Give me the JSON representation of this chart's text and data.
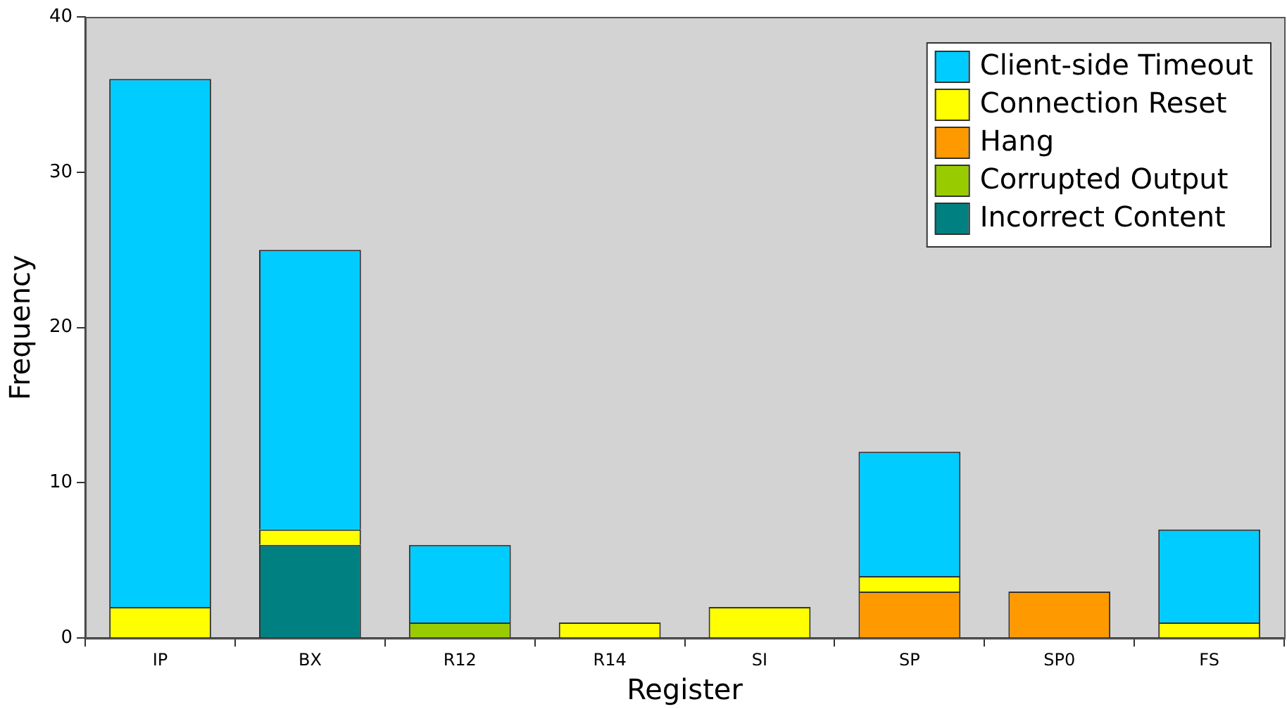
{
  "chart_data": {
    "type": "bar",
    "stacked": true,
    "xlabel": "Register",
    "ylabel": "Frequency",
    "categories": [
      "IP",
      "BX",
      "R12",
      "R14",
      "SI",
      "SP",
      "SP0",
      "FS"
    ],
    "ylim": [
      0,
      40
    ],
    "yticks": [
      0,
      10,
      20,
      30,
      40
    ],
    "legend": "top right",
    "series": [
      {
        "name": "Incorrect Content",
        "color": "#008080",
        "values": [
          0,
          6,
          0,
          0,
          0,
          0,
          0,
          0
        ]
      },
      {
        "name": "Corrupted Output",
        "color": "#99cc00",
        "values": [
          0,
          0,
          1,
          0,
          0,
          0,
          0,
          0
        ]
      },
      {
        "name": "Hang",
        "color": "#ff9900",
        "values": [
          0,
          0,
          0,
          0,
          0,
          3,
          3,
          0
        ]
      },
      {
        "name": "Connection Reset",
        "color": "#ffff00",
        "values": [
          2,
          1,
          0,
          1,
          2,
          1,
          0,
          1
        ]
      },
      {
        "name": "Client-side Timeout",
        "color": "#00ccff",
        "values": [
          34,
          18,
          5,
          0,
          0,
          8,
          0,
          6
        ]
      }
    ]
  }
}
